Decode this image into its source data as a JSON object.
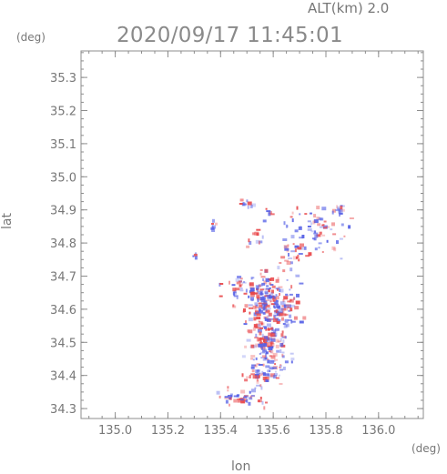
{
  "header": {
    "altitude_label": "ALT(km)  2.0",
    "timestamp": "2020/09/17  11:45:01"
  },
  "chart_data": {
    "type": "heatmap",
    "title": "2020/09/17  11:45:01",
    "xlabel": "lon",
    "ylabel": "lat",
    "x_unit": "(deg)",
    "y_unit": "(deg)",
    "xlim": [
      134.87,
      136.17
    ],
    "ylim": [
      34.27,
      35.38
    ],
    "xticks": [
      "135.0",
      "135.2",
      "135.4",
      "135.6",
      "135.8",
      "136.0"
    ],
    "yticks": [
      "34.3",
      "34.4",
      "34.5",
      "34.6",
      "34.7",
      "34.8",
      "34.9",
      "35.0",
      "35.1",
      "35.2",
      "35.3"
    ],
    "grid": false,
    "colors": {
      "positive": "#e8474a",
      "negative": "#5560e6",
      "axis": "#8c8c8c"
    },
    "clusters": [
      {
        "lon": 135.58,
        "lat": 34.63,
        "spread_lon": 0.08,
        "spread_lat": 0.06,
        "n": 220
      },
      {
        "lon": 135.57,
        "lat": 34.5,
        "spread_lon": 0.06,
        "spread_lat": 0.07,
        "n": 150
      },
      {
        "lon": 135.56,
        "lat": 34.41,
        "spread_lon": 0.05,
        "spread_lat": 0.03,
        "n": 50
      },
      {
        "lon": 135.48,
        "lat": 34.34,
        "spread_lon": 0.07,
        "spread_lat": 0.02,
        "n": 45
      },
      {
        "lon": 135.76,
        "lat": 34.84,
        "spread_lon": 0.08,
        "spread_lat": 0.05,
        "n": 70
      },
      {
        "lon": 135.84,
        "lat": 34.91,
        "spread_lon": 0.02,
        "spread_lat": 0.02,
        "n": 15
      },
      {
        "lon": 135.66,
        "lat": 34.77,
        "spread_lon": 0.03,
        "spread_lat": 0.04,
        "n": 25
      },
      {
        "lon": 135.47,
        "lat": 34.67,
        "spread_lon": 0.05,
        "spread_lat": 0.02,
        "n": 30
      },
      {
        "lon": 135.37,
        "lat": 34.86,
        "spread_lon": 0.01,
        "spread_lat": 0.02,
        "n": 8
      },
      {
        "lon": 135.49,
        "lat": 34.92,
        "spread_lon": 0.02,
        "spread_lat": 0.01,
        "n": 10
      },
      {
        "lon": 135.58,
        "lat": 34.9,
        "spread_lon": 0.01,
        "spread_lat": 0.01,
        "n": 5
      },
      {
        "lon": 135.53,
        "lat": 34.83,
        "spread_lon": 0.03,
        "spread_lat": 0.03,
        "n": 12
      },
      {
        "lon": 135.3,
        "lat": 34.76,
        "spread_lon": 0.01,
        "spread_lat": 0.01,
        "n": 4
      }
    ]
  }
}
